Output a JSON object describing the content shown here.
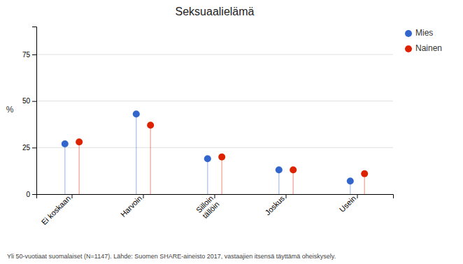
{
  "chart_data": {
    "type": "lollipop",
    "title": "Seksuaalielämä",
    "categories": [
      "Ei koskaan",
      "Harvoin",
      "Silloin\ntällöin",
      "Joskus",
      "Usein"
    ],
    "series": [
      {
        "name": "Mies",
        "color": "#3366cc",
        "values": [
          27,
          43,
          19,
          13,
          7
        ]
      },
      {
        "name": "Nainen",
        "color": "#dd2200",
        "values": [
          28,
          37,
          20,
          13,
          11
        ]
      }
    ],
    "ylabel": "%",
    "ylim": [
      0,
      90
    ],
    "yticks": [
      0,
      25,
      50,
      75
    ],
    "grid": true,
    "legend": "upper right",
    "annotations": [
      "Yli 50-vuotiaat suomalaiset (N=1147). Lähde: Suomen SHARE-aineisto 2017, vastaajien itsensä täyttämä oheiskysely."
    ]
  }
}
